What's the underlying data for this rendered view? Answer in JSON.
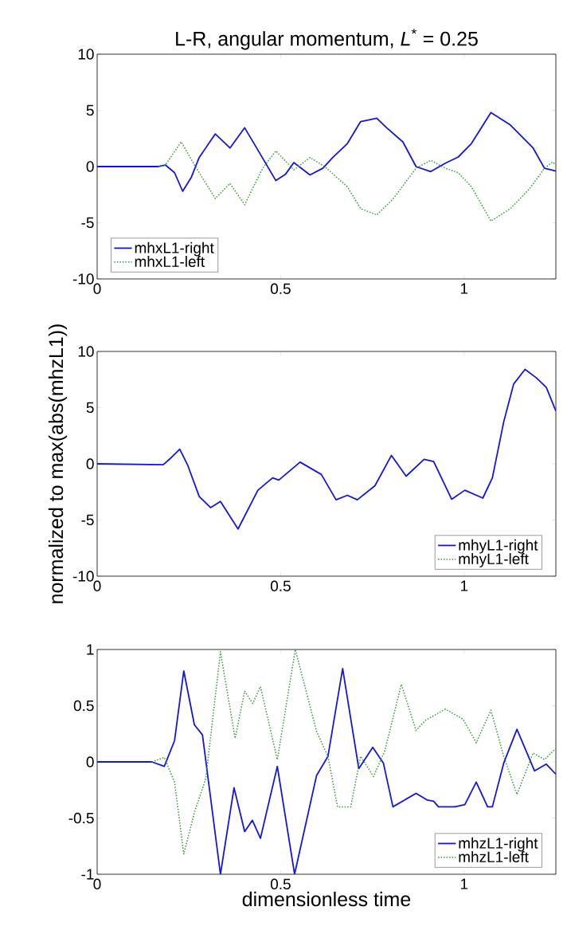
{
  "chart_data": [
    {
      "type": "line",
      "title": "L-R, angular momentum, *L*$^{*}$ = 0.25",
      "xlim": [
        0,
        1.25
      ],
      "ylim": [
        -10,
        10
      ],
      "xticks": [
        0,
        0.5,
        1
      ],
      "yticks": [
        -10,
        -5,
        0,
        5,
        10
      ],
      "legend": "bottom left",
      "grid": false,
      "marker": "none",
      "series": [
        {
          "name": "mhxL1-right",
          "color": "#1414e6",
          "line_style": "solid",
          "x": [
            0,
            0.167,
            0.186,
            0.211,
            0.233,
            0.256,
            0.278,
            0.322,
            0.362,
            0.402,
            0.442,
            0.487,
            0.513,
            0.536,
            0.58,
            0.615,
            0.642,
            0.682,
            0.718,
            0.762,
            0.789,
            0.833,
            0.869,
            0.909,
            0.949,
            0.984,
            1.02,
            1.073,
            1.126,
            1.188,
            1.219,
            1.25
          ],
          "values": [
            0,
            0,
            0.14,
            -0.55,
            -2.2,
            -1,
            0.8,
            2.9,
            1.65,
            3.45,
            1.25,
            -1.25,
            -0.7,
            0.35,
            -0.75,
            -0.15,
            0.8,
            2.05,
            4.0,
            4.3,
            3.45,
            2.2,
            0,
            -0.45,
            0.3,
            0.85,
            2.05,
            4.8,
            3.7,
            1.65,
            -0.15,
            -0.4
          ]
        },
        {
          "name": "mhxL1-left",
          "color": "#339933",
          "line_style": "dotted",
          "x": [
            0.167,
            0.186,
            0.229,
            0.265,
            0.322,
            0.362,
            0.402,
            0.451,
            0.487,
            0.536,
            0.58,
            0.62,
            0.682,
            0.718,
            0.762,
            0.806,
            0.869,
            0.909,
            0.949,
            0.984,
            1.02,
            1.073,
            1.126,
            1.179,
            1.219,
            1.241,
            1.25
          ],
          "values": [
            0,
            0.14,
            2.2,
            0.15,
            -2.85,
            -1.5,
            -3.4,
            -0.15,
            1.4,
            -0.3,
            0.8,
            0,
            -1.8,
            -3.75,
            -4.3,
            -2.9,
            -0.15,
            0.55,
            -0.15,
            -0.55,
            -1.8,
            -4.85,
            -3.75,
            -1.95,
            -0.15,
            0.4,
            0.14
          ]
        }
      ]
    },
    {
      "type": "line",
      "ylabel": "normalized to max(abs(mhzL1))",
      "xlim": [
        0,
        1.25
      ],
      "ylim": [
        -10,
        10
      ],
      "xticks": [
        0,
        0.5,
        1
      ],
      "yticks": [
        -10,
        -5,
        0,
        5,
        10
      ],
      "legend": "bottom right",
      "grid": false,
      "marker": "none",
      "series": [
        {
          "name": "mhyL1-right",
          "color": "#1414e6",
          "line_style": "solid",
          "x": [
            0,
            0.18,
            0.202,
            0.225,
            0.247,
            0.278,
            0.309,
            0.336,
            0.384,
            0.438,
            0.478,
            0.495,
            0.553,
            0.611,
            0.651,
            0.682,
            0.709,
            0.757,
            0.802,
            0.842,
            0.891,
            0.917,
            0.966,
            1.002,
            1.051,
            1.077,
            1.108,
            1.135,
            1.166,
            1.197,
            1.224,
            1.25
          ],
          "values": [
            0,
            -0.08,
            0.55,
            1.3,
            -0.14,
            -2.9,
            -3.9,
            -3.35,
            -5.8,
            -2.35,
            -1.25,
            -1.45,
            0.15,
            -0.95,
            -3.2,
            -2.8,
            -3.2,
            -1.95,
            0.75,
            -1.1,
            0.4,
            0.2,
            -3.15,
            -2.35,
            -3.05,
            -1.25,
            3.75,
            7.1,
            8.4,
            7.65,
            6.8,
            4.7
          ]
        },
        {
          "name": "mhyL1-left",
          "color": "#339933",
          "line_style": "dotted"
        }
      ]
    },
    {
      "type": "line",
      "xlabel": "dimensionless time",
      "xlim": [
        0,
        1.25
      ],
      "ylim": [
        -1,
        1
      ],
      "xticks": [
        0,
        0.5,
        1
      ],
      "yticks": [
        -1,
        -0.5,
        0,
        0.5,
        1
      ],
      "legend": "bottom right",
      "grid": false,
      "marker": "none",
      "series": [
        {
          "name": "mhzL1-right",
          "color": "#1414e6",
          "line_style": "solid",
          "x": [
            0,
            0.149,
            0.183,
            0.211,
            0.236,
            0.265,
            0.287,
            0.336,
            0.373,
            0.402,
            0.423,
            0.445,
            0.491,
            0.538,
            0.598,
            0.629,
            0.669,
            0.713,
            0.751,
            0.78,
            0.806,
            0.869,
            0.9,
            0.917,
            0.93,
            0.975,
            1.002,
            1.033,
            1.064,
            1.077,
            1.108,
            1.144,
            1.192,
            1.224,
            1.25
          ],
          "values": [
            0,
            0,
            -0.04,
            0.19,
            0.81,
            0.33,
            0.24,
            -1.0,
            -0.23,
            -0.62,
            -0.52,
            -0.68,
            -0.04,
            -1.0,
            -0.12,
            0.05,
            0.83,
            -0.06,
            0.13,
            -0.01,
            -0.4,
            -0.28,
            -0.34,
            -0.35,
            -0.4,
            -0.4,
            -0.38,
            -0.18,
            -0.4,
            -0.4,
            -0.01,
            0.29,
            -0.08,
            -0.02,
            -0.11
          ]
        },
        {
          "name": "mhzL1-left",
          "color": "#339933",
          "line_style": "dotted",
          "x": [
            0.149,
            0.183,
            0.211,
            0.236,
            0.265,
            0.296,
            0.336,
            0.376,
            0.402,
            0.424,
            0.445,
            0.491,
            0.54,
            0.598,
            0.629,
            0.655,
            0.691,
            0.718,
            0.753,
            0.784,
            0.829,
            0.869,
            0.895,
            0.949,
            0.997,
            1.033,
            1.073,
            1.108,
            1.144,
            1.188,
            1.219,
            1.25
          ],
          "values": [
            0,
            0.04,
            -0.18,
            -0.82,
            -0.45,
            -0.15,
            0.98,
            0.21,
            0.63,
            0.52,
            0.67,
            0.02,
            1.0,
            0.27,
            0.05,
            -0.4,
            -0.4,
            0.05,
            -0.13,
            0.1,
            0.69,
            0.28,
            0.37,
            0.47,
            0.38,
            0.17,
            0.46,
            0.05,
            -0.29,
            0.08,
            0.02,
            0.12
          ]
        }
      ]
    }
  ]
}
